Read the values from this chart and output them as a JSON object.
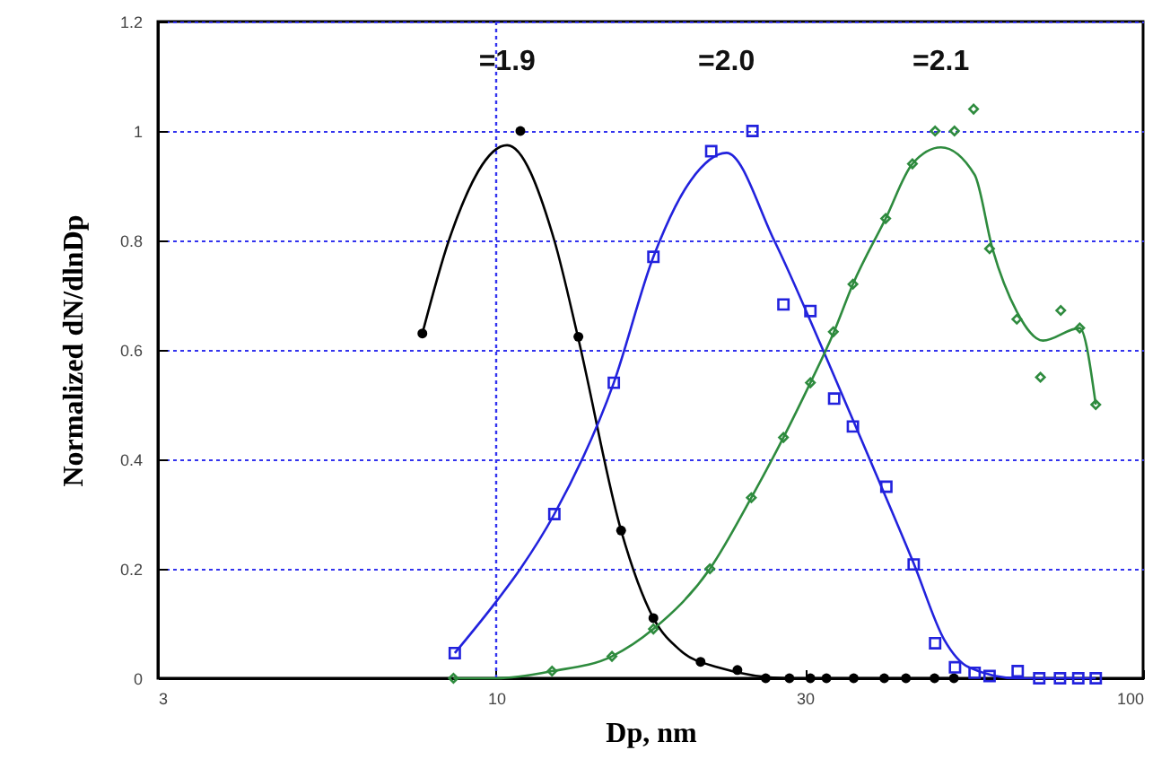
{
  "chart_data": {
    "type": "scatter",
    "xlabel": "Dp, nm",
    "ylabel": "Normalized dN/dlnDp",
    "log": "x",
    "xlim": [
      3,
      100
    ],
    "xticks": [
      3,
      10,
      30,
      100
    ],
    "ylim": [
      0,
      1.2
    ],
    "yticks": [
      0,
      0.2,
      0.4,
      0.6,
      0.8,
      1,
      1.2
    ],
    "grid": "y",
    "ref_lines": [
      {
        "axis": "x",
        "value": 10,
        "color": "#3333ee",
        "line_style": "dotted"
      }
    ],
    "annotations": [
      "=1.9",
      "=2.0",
      "=2.1"
    ],
    "series": [
      {
        "type": "line",
        "color": "#000000",
        "line_style": "solid",
        "x": [
          7.69,
          8.45,
          10.4,
          12.3,
          13.4,
          15.6,
          17.5,
          19.3,
          22.0,
          28.4,
          50.6
        ],
        "values": [
          0.63,
          0.8,
          0.974,
          0.8,
          0.62,
          0.27,
          0.11,
          0.05,
          0.02,
          0,
          0
        ]
      },
      {
        "type": "line",
        "color": "#2222dd",
        "line_style": "solid",
        "x": [
          8.63,
          10.0,
          10.9,
          12.3,
          15.2,
          17.5,
          20.0,
          22.7,
          26.9,
          32.0,
          37.8,
          44.2,
          49.3,
          53.8,
          63.8,
          84.5
        ],
        "values": [
          0.046,
          0.14,
          0.2,
          0.3,
          0.54,
          0.77,
          0.91,
          0.96,
          0.8,
          0.6,
          0.4,
          0.21,
          0.07,
          0.02,
          0,
          0
        ]
      },
      {
        "type": "line",
        "color": "#2e8b3e",
        "line_style": "solid",
        "x": [
          8.59,
          10.0,
          12.2,
          15.1,
          17.5,
          21.4,
          24.8,
          27.8,
          30.6,
          33.2,
          35.6,
          40.0,
          44.0,
          48.7,
          54.9,
          58.5,
          63.8,
          70.0,
          79.8,
          84.5
        ],
        "values": [
          0,
          0,
          0.013,
          0.04,
          0.09,
          0.2,
          0.33,
          0.44,
          0.54,
          0.63,
          0.72,
          0.84,
          0.94,
          0.97,
          0.92,
          0.785,
          0.67,
          0.617,
          0.64,
          0.5
        ]
      },
      {
        "color": "#000000",
        "marker": "circle",
        "x": [
          7.69,
          10.9,
          13.4,
          15.6,
          17.5,
          20.7,
          23.6,
          26.1,
          28.4,
          30.6,
          32.4,
          35.7,
          39.8,
          43.0,
          47.6,
          51.0
        ],
        "values": [
          0.63,
          1,
          0.624,
          0.27,
          0.11,
          0.03,
          0.015,
          0,
          0,
          0,
          0,
          0,
          0,
          0,
          0,
          0
        ]
      },
      {
        "color": "#2222dd",
        "marker": "square",
        "x": [
          8.63,
          12.3,
          15.2,
          17.5,
          21.5,
          24.9,
          27.8,
          30.6,
          33.3,
          35.6,
          40.1,
          44.2,
          47.7,
          51.2,
          54.9,
          57.9,
          64.0,
          69.1,
          74.4,
          79.4,
          84.5
        ],
        "values": [
          0.046,
          0.3,
          0.54,
          0.77,
          0.963,
          1,
          0.683,
          0.671,
          0.511,
          0.46,
          0.35,
          0.208,
          0.064,
          0.02,
          0.01,
          0.004,
          0.013,
          0,
          0,
          0,
          0
        ]
      },
      {
        "color": "#2e8b3e",
        "marker": "diamond",
        "x": [
          8.59,
          12.2,
          15.1,
          17.5,
          21.4,
          24.8,
          27.8,
          30.6,
          33.2,
          35.6,
          40.0,
          44.0,
          47.7,
          51.1,
          54.7,
          57.9,
          63.8,
          69.4,
          74.6,
          79.8,
          84.5
        ],
        "values": [
          0,
          0.013,
          0.04,
          0.09,
          0.2,
          0.33,
          0.44,
          0.54,
          0.633,
          0.72,
          0.84,
          0.94,
          1,
          1,
          1.04,
          0.785,
          0.656,
          0.55,
          0.672,
          0.64,
          0.5
        ]
      }
    ]
  }
}
